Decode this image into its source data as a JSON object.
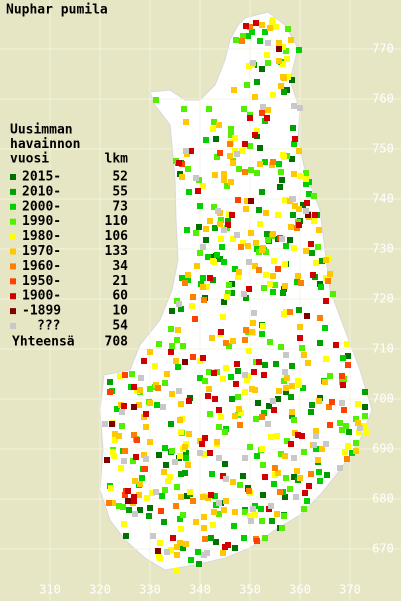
{
  "title": "Nuphar pumila",
  "legend": {
    "heading": [
      "Uusimman",
      "havainnon",
      "vuosi"
    ],
    "count_heading": "lkm",
    "items": [
      {
        "label": "2015-",
        "count": 52,
        "color": "#007000"
      },
      {
        "label": "2010-",
        "count": 55,
        "color": "#00a000"
      },
      {
        "label": "2000-",
        "count": 73,
        "color": "#00d000"
      },
      {
        "label": "1990-",
        "count": 110,
        "color": "#50f000"
      },
      {
        "label": "1980-",
        "count": 106,
        "color": "#ffff00"
      },
      {
        "label": "1970-",
        "count": 133,
        "color": "#ffc800"
      },
      {
        "label": "1960-",
        "count": 34,
        "color": "#ff8000"
      },
      {
        "label": "1950-",
        "count": 21,
        "color": "#ff4000"
      },
      {
        "label": "1900-",
        "count": 60,
        "color": "#d00000"
      },
      {
        "label": "-1899",
        "count": 10,
        "color": "#800000"
      },
      {
        "label": "???",
        "count": 54,
        "color": "#c8c8c8"
      }
    ],
    "total_label": "Yhteensä",
    "total": 708
  },
  "x_axis_labels": [
    310,
    320,
    330,
    340,
    350,
    360,
    370
  ],
  "y_axis_labels": [
    770,
    760,
    750,
    740,
    730,
    720,
    710,
    700,
    690,
    680,
    670
  ]
}
